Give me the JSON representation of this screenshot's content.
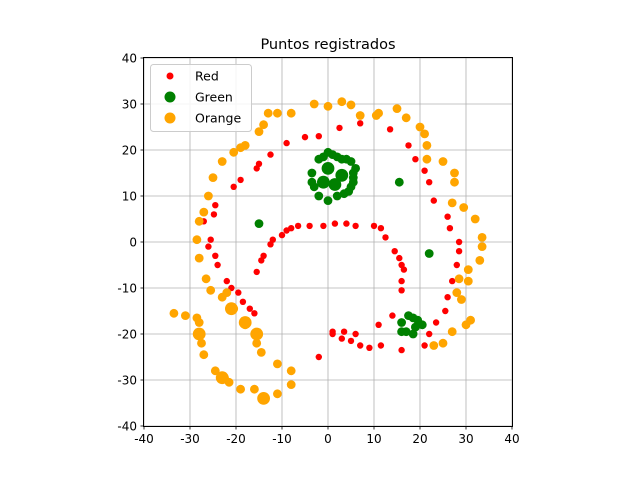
{
  "chart_data": {
    "type": "scatter",
    "title": "Puntos registrados",
    "xlabel": "",
    "ylabel": "",
    "xlim": [
      -40,
      40
    ],
    "ylim": [
      -40,
      40
    ],
    "xticks": [
      -40,
      -30,
      -20,
      -10,
      0,
      10,
      20,
      30,
      40
    ],
    "yticks": [
      -40,
      -30,
      -20,
      -10,
      0,
      10,
      20,
      30,
      40
    ],
    "grid": true,
    "legend_position": "top-left",
    "series": [
      {
        "name": "Red",
        "color": "#ff0000",
        "points": [
          [
            -24.5,
            8
          ],
          [
            -24.8,
            6
          ],
          [
            -27,
            4.5
          ],
          [
            -25.5,
            0.5
          ],
          [
            -24.5,
            -3
          ],
          [
            -24,
            -5
          ],
          [
            -22,
            -8.5
          ],
          [
            -21,
            -10
          ],
          [
            -19.5,
            -11
          ],
          [
            -18.5,
            -13
          ],
          [
            -17,
            -14.5
          ],
          [
            -16,
            -15.5
          ],
          [
            -20.5,
            12
          ],
          [
            -19,
            13.5
          ],
          [
            -15.5,
            16
          ],
          [
            -15,
            17
          ],
          [
            -12.5,
            19
          ],
          [
            -9,
            21.5
          ],
          [
            -5,
            22.8
          ],
          [
            -2,
            23
          ],
          [
            2.5,
            24.8
          ],
          [
            7,
            25.8
          ],
          [
            13.5,
            24.5
          ],
          [
            17.5,
            21
          ],
          [
            19,
            18
          ],
          [
            21,
            15.5
          ],
          [
            22,
            13
          ],
          [
            23,
            9
          ],
          [
            26,
            5.5
          ],
          [
            26.5,
            3
          ],
          [
            28.5,
            0
          ],
          [
            28.5,
            -2
          ],
          [
            28,
            -5
          ],
          [
            27,
            -8.5
          ],
          [
            26,
            -12
          ],
          [
            25.5,
            -15
          ],
          [
            23.5,
            -17.5
          ],
          [
            22,
            -20
          ],
          [
            21,
            -22.5
          ],
          [
            16,
            -23.5
          ],
          [
            11.5,
            -22.5
          ],
          [
            9,
            -23
          ],
          [
            7,
            -22.5
          ],
          [
            5,
            -21.5
          ],
          [
            3,
            -21
          ],
          [
            1,
            -20
          ],
          [
            6,
            -20
          ],
          [
            3.5,
            -19.5
          ],
          [
            11,
            -18
          ],
          [
            14,
            -16
          ],
          [
            -15.5,
            -6.5
          ],
          [
            -14.5,
            -4
          ],
          [
            -14,
            -3
          ],
          [
            -12.5,
            -0.5
          ],
          [
            -12,
            0.5
          ],
          [
            -10,
            1.5
          ],
          [
            -9,
            2.5
          ],
          [
            -8,
            3
          ],
          [
            -6.5,
            3.5
          ],
          [
            -4,
            3.5
          ],
          [
            -1,
            3.5
          ],
          [
            1.5,
            4
          ],
          [
            4,
            4
          ],
          [
            6,
            3.5
          ],
          [
            10,
            3.5
          ],
          [
            11.5,
            3
          ],
          [
            12.5,
            1
          ],
          [
            14.5,
            -2
          ],
          [
            15.5,
            -3.5
          ],
          [
            16,
            -5
          ],
          [
            16.5,
            -6
          ],
          [
            16,
            -8.5
          ],
          [
            16,
            -10.5
          ],
          [
            1,
            -19.5
          ],
          [
            -26,
            -1
          ],
          [
            -2,
            -25
          ]
        ]
      },
      {
        "name": "Green",
        "color": "#008000",
        "points": [
          [
            -2,
            18
          ],
          [
            -1,
            18.5
          ],
          [
            0,
            19.5
          ],
          [
            1,
            19
          ],
          [
            2,
            18.5
          ],
          [
            3,
            18
          ],
          [
            4,
            18
          ],
          [
            5,
            17.5
          ],
          [
            6,
            16
          ],
          [
            5.5,
            15
          ],
          [
            5.5,
            14
          ],
          [
            5.5,
            13
          ],
          [
            5,
            12
          ],
          [
            4.5,
            11
          ],
          [
            3.5,
            10.5
          ],
          [
            2,
            10
          ],
          [
            0,
            9
          ],
          [
            -2,
            10
          ],
          [
            -3,
            12
          ],
          [
            -3.5,
            13
          ],
          [
            -3.5,
            15
          ],
          [
            0,
            16,
            "big"
          ],
          [
            3,
            14.5,
            "big"
          ],
          [
            -1,
            13,
            "big"
          ],
          [
            1.5,
            12.5,
            "big"
          ],
          [
            -15,
            4
          ],
          [
            15.5,
            13
          ],
          [
            22,
            -2.5
          ],
          [
            16,
            -17.5
          ],
          [
            16,
            -19.5
          ],
          [
            17,
            -19.5
          ],
          [
            17.5,
            -16
          ],
          [
            18.5,
            -16.5
          ],
          [
            19.5,
            -17
          ],
          [
            20.5,
            -18
          ],
          [
            19,
            -18.5
          ],
          [
            18.5,
            -20
          ]
        ]
      },
      {
        "name": "Orange",
        "color": "#ffa500",
        "points": [
          [
            0,
            29.5
          ],
          [
            3,
            30.5
          ],
          [
            5,
            29.8
          ],
          [
            7,
            27.5
          ],
          [
            10.5,
            27.5
          ],
          [
            11,
            28
          ],
          [
            15,
            29
          ],
          [
            17,
            27
          ],
          [
            20,
            25
          ],
          [
            21,
            23.5
          ],
          [
            21.5,
            21
          ],
          [
            21.5,
            18
          ],
          [
            25,
            17.5
          ],
          [
            27.5,
            15
          ],
          [
            27.5,
            13
          ],
          [
            27,
            8.5
          ],
          [
            29.5,
            7.5
          ],
          [
            32,
            5
          ],
          [
            33.5,
            1
          ],
          [
            33.5,
            -1
          ],
          [
            33,
            -4
          ],
          [
            30.5,
            -6
          ],
          [
            30.5,
            -8.5
          ],
          [
            28.5,
            -8
          ],
          [
            28,
            -11
          ],
          [
            29,
            -12.5
          ],
          [
            31,
            -17
          ],
          [
            30,
            -18
          ],
          [
            27,
            -19.5
          ],
          [
            25,
            -22
          ],
          [
            23,
            -22.5
          ],
          [
            -3,
            30
          ],
          [
            -8,
            28
          ],
          [
            -11,
            28
          ],
          [
            -13,
            28
          ],
          [
            -14,
            25.5
          ],
          [
            -15,
            24
          ],
          [
            -18,
            21
          ],
          [
            -19,
            20.5
          ],
          [
            -20.5,
            19.5
          ],
          [
            -23,
            17.5
          ],
          [
            -25,
            14
          ],
          [
            -26,
            10
          ],
          [
            -27,
            6.5
          ],
          [
            -28,
            4.5
          ],
          [
            -28.5,
            0.5
          ],
          [
            -28,
            -3.5
          ],
          [
            -26.5,
            -8
          ],
          [
            -25.5,
            -10.5
          ],
          [
            -23,
            -12
          ],
          [
            -22,
            -11
          ],
          [
            -33.5,
            -15.5
          ],
          [
            -31,
            -16
          ],
          [
            -28.5,
            -16.5
          ],
          [
            -28,
            -17.5
          ],
          [
            -28,
            -20
          ],
          [
            -27.5,
            -22
          ],
          [
            -27,
            -24.5
          ],
          [
            -24.5,
            -28
          ],
          [
            -22.5,
            -29.5
          ],
          [
            -21.5,
            -30.5
          ],
          [
            -19,
            -32
          ],
          [
            -16,
            -32
          ],
          [
            -11,
            -33
          ],
          [
            -8,
            -31
          ],
          [
            -8,
            -28
          ],
          [
            -11,
            -26.5
          ],
          [
            -14.5,
            -24
          ],
          [
            -15.5,
            -22
          ],
          [
            -15.5,
            -20
          ],
          [
            -18,
            -18
          ],
          [
            -20.5,
            -14.5
          ],
          [
            -14,
            -34,
            "big"
          ],
          [
            -18,
            -17.5,
            "big"
          ],
          [
            -15.5,
            -20,
            "big"
          ],
          [
            -21,
            -14.5,
            "big"
          ],
          [
            -23,
            -29.5,
            "big"
          ],
          [
            -28,
            -20,
            "big"
          ]
        ]
      }
    ]
  }
}
